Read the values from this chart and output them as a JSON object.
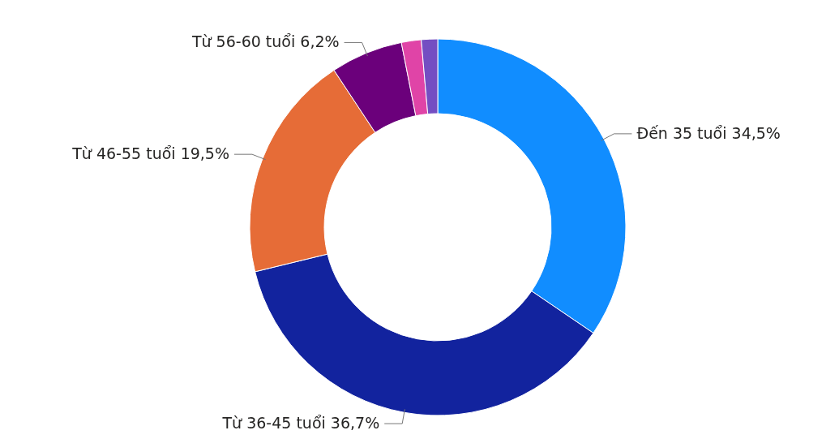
{
  "chart_data": {
    "type": "donut",
    "categories": [
      "Đến 35 tuổi",
      "Từ 36-45 tuổi",
      "Từ 46-55 tuổi",
      "Từ 56-60 tuổi",
      null,
      null
    ],
    "values": [
      34.5,
      36.7,
      19.5,
      6.2,
      1.7,
      1.4
    ],
    "value_labels": [
      "34,5%",
      "36,7%",
      "19,5%",
      "6,2%",
      null,
      null
    ],
    "colors": [
      "#118dff",
      "#12239e",
      "#e66c37",
      "#6b007b",
      "#e044a7",
      "#744ec2"
    ]
  }
}
